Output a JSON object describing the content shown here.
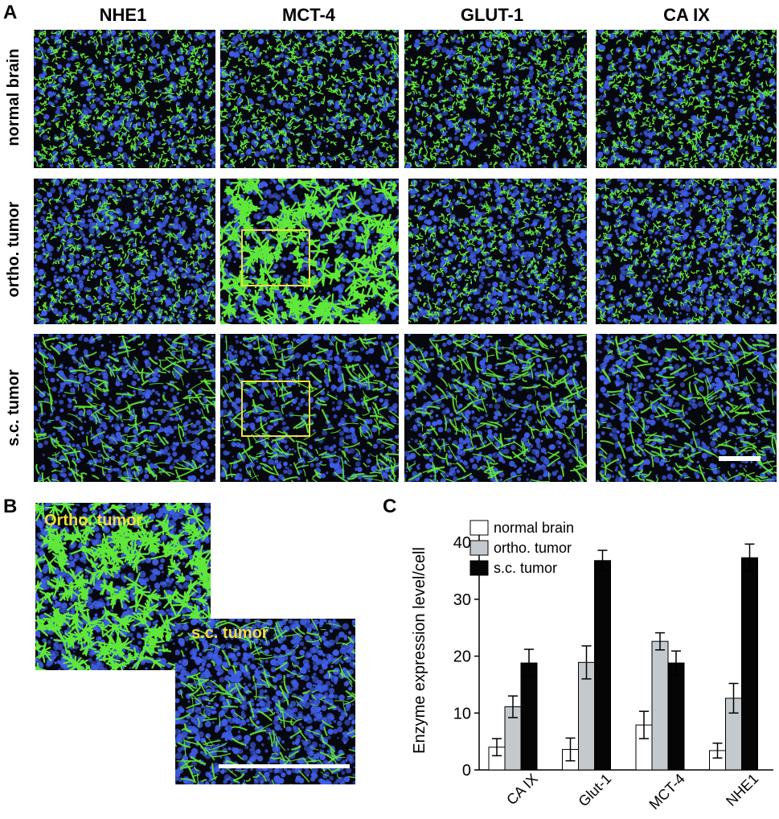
{
  "panels": {
    "a": "A",
    "b": "B",
    "c": "C"
  },
  "columns": [
    "NHE1",
    "MCT-4",
    "GLUT-1",
    "CA IX"
  ],
  "rows": [
    "normal brain",
    "ortho. tumor",
    "s.c.  tumor"
  ],
  "panel_b": {
    "label_top": "Ortho. tumor",
    "label_bottom": "s.c. tumor"
  },
  "colors": {
    "nuclei": "#3f5ee8",
    "stain": "#5fe83a",
    "background": "#06080e",
    "inset_box": "#f2e03a",
    "label_yellow": "#f2e03a"
  },
  "chart_data": {
    "type": "bar",
    "ylabel": "Enzyme expression level/cell",
    "xlabel": "",
    "ylim": [
      0,
      42
    ],
    "yticks": [
      0,
      10,
      20,
      30,
      40
    ],
    "categories": [
      "CA IX",
      "Glut-1",
      "MCT-4",
      "NHE1"
    ],
    "legend_position": "top-left",
    "series": [
      {
        "name": "normal brain",
        "color": "#ffffff",
        "values": [
          4.0,
          3.6,
          7.9,
          3.4
        ],
        "errors": [
          1.5,
          2.0,
          2.4,
          1.3
        ]
      },
      {
        "name": "ortho. tumor",
        "color": "#c3c9cc",
        "values": [
          11.1,
          18.9,
          22.6,
          12.6
        ],
        "errors": [
          1.9,
          2.9,
          1.5,
          2.6
        ]
      },
      {
        "name": "s.c. tumor",
        "color": "#050505",
        "values": [
          18.8,
          36.8,
          18.8,
          37.3
        ],
        "errors": [
          2.4,
          1.8,
          2.1,
          2.4
        ]
      }
    ]
  }
}
